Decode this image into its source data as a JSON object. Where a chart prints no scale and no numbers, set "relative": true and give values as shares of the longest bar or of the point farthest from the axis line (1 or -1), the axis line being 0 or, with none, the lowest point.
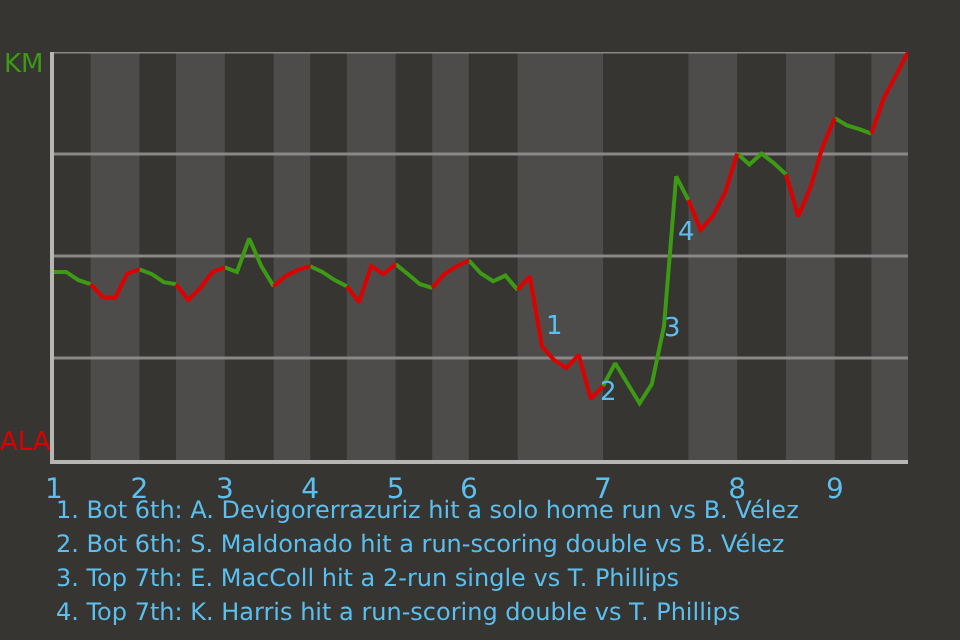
{
  "chart_data": {
    "type": "line",
    "relative": true,
    "tick_labels": "x",
    "categories": [
      "1",
      null,
      null,
      null,
      null,
      null,
      null,
      "2",
      null,
      null,
      null,
      null,
      null,
      null,
      "3",
      null,
      null,
      null,
      null,
      null,
      null,
      "4",
      null,
      null,
      null,
      null,
      null,
      null,
      "5",
      null,
      null,
      null,
      null,
      null,
      "6",
      null,
      null,
      null,
      null,
      null,
      null,
      null,
      null,
      null,
      null,
      "7",
      null,
      null,
      null,
      null,
      null,
      null,
      null,
      null,
      null,
      null,
      "8",
      null,
      null,
      null,
      null,
      null,
      null,
      null,
      "9",
      null,
      null,
      null,
      null,
      null,
      null
    ],
    "series": [
      {
        "color": "#3c9a14",
        "values": [
          0.461,
          0.461,
          0.441,
          0.431,
          null,
          null,
          null,
          0.467,
          0.456,
          0.436,
          0.431,
          null,
          null,
          null,
          0.472,
          0.461,
          0.543,
          0.475,
          0.426,
          null,
          null,
          0.475,
          0.461,
          0.441,
          0.426,
          null,
          null,
          null,
          0.48,
          0.456,
          0.431,
          0.422,
          null,
          null,
          0.489,
          0.457,
          0.438,
          0.452,
          0.417,
          null,
          null,
          null,
          null,
          null,
          null,
          0.181,
          0.237,
          0.188,
          0.139,
          0.186,
          0.328,
          0.695,
          0.637,
          null,
          null,
          null,
          0.751,
          0.724,
          0.751,
          0.728,
          0.7,
          null,
          null,
          null,
          0.838,
          0.82,
          0.811,
          0.8,
          null,
          null,
          null
        ]
      },
      {
        "color": "#dd0000",
        "values": [
          null,
          null,
          null,
          0.431,
          0.399,
          0.397,
          0.457,
          0.467,
          null,
          null,
          0.431,
          0.392,
          0.422,
          0.461,
          0.472,
          null,
          null,
          null,
          0.426,
          0.451,
          0.466,
          0.475,
          null,
          null,
          0.426,
          0.387,
          0.475,
          0.456,
          0.48,
          null,
          null,
          0.422,
          0.456,
          0.475,
          0.489,
          null,
          null,
          null,
          0.417,
          0.45,
          0.278,
          0.245,
          0.225,
          0.258,
          0.15,
          0.181,
          null,
          null,
          null,
          null,
          null,
          null,
          0.637,
          0.564,
          0.598,
          0.655,
          0.751,
          null,
          null,
          null,
          0.7,
          0.597,
          0.668,
          0.768,
          0.838,
          null,
          null,
          0.8,
          0.886,
          0.942,
          1.0
        ]
      }
    ],
    "ref_lines": [
      {
        "axis": "y",
        "value": 0.25,
        "color": "#8a8886"
      },
      {
        "axis": "y",
        "value": 0.5,
        "color": "#8a8886"
      },
      {
        "axis": "y",
        "value": 0.75,
        "color": "#8a8886"
      },
      {
        "axis": "y",
        "value": 1.0,
        "color": "#8a8886"
      }
    ],
    "annotations": [
      "KM",
      "ALA",
      "1",
      "2",
      "3",
      "4",
      "1. Bot 6th: A. Devigorerrazuriz hit a solo home run vs B. Vélez",
      "2. Bot 6th: S. Maldonado hit a run-scoring double vs B. Vélez",
      "3. Top 7th: E. MacColl hit a 2-run single vs T. Phillips",
      "4. Top 7th: K. Harris hit a run-scoring double vs T. Phillips"
    ]
  }
}
